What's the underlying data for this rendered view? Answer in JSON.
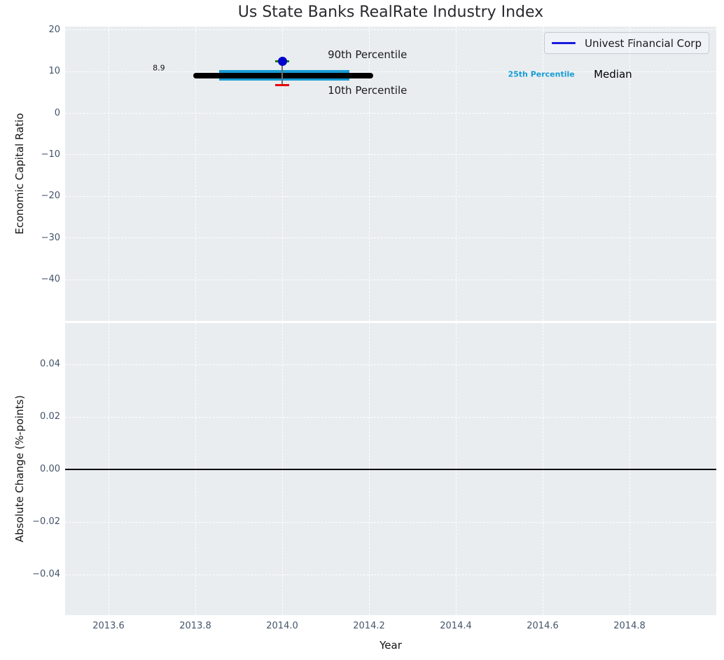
{
  "figure": {
    "title": "Us State Banks RealRate Industry Index"
  },
  "legend": {
    "label": "Univest Financial Corp"
  },
  "palette": {
    "plot_bg": "#e9edf0",
    "grid": "#ffffff",
    "tick_label": "#44546a",
    "text_dark": "#1a1a1a",
    "median_line": "#000000",
    "iqr_band": "#179cd4",
    "p90_marker": "#008000",
    "p10_marker": "#e80000",
    "company_dot": "#0000cd",
    "legend_line": "#1a1ae0",
    "connector": "#6e6e6e",
    "zero_line": "#000000"
  },
  "chart_data": [
    {
      "type": "percentile-summary",
      "title": "Us State Banks RealRate Industry Index",
      "xlabel": "",
      "ylabel": "Economic Capital Ratio",
      "xlim": [
        2013.5,
        2015.0
      ],
      "ylim": [
        -50,
        20.7
      ],
      "grid": "white-dashed",
      "legend_position": "upper right",
      "yticks": {
        "values": [
          20,
          10,
          0,
          -10,
          -20,
          -30,
          -40
        ],
        "labels": [
          "20",
          "10",
          "0",
          "−10",
          "−20",
          "−30",
          "−40"
        ]
      },
      "series": {
        "name": "Univest Financial Corp",
        "x": 2014.0,
        "value": 12.4
      },
      "industry": {
        "median": 8.9,
        "median_label": "8.9",
        "median_span": [
          2013.795,
          2014.21
        ],
        "p25": 7.7,
        "p75": 10.35,
        "iqr_span": [
          2013.855,
          2014.155
        ],
        "p90": 12.4,
        "p10": 6.7,
        "marker_halfwidth": 0.016
      },
      "annotations": [
        {
          "text": "90th Percentile",
          "x": 2014.105,
          "y": 13.9,
          "align": "left",
          "style": "plain"
        },
        {
          "text": "10th Percentile",
          "x": 2014.105,
          "y": 5.45,
          "align": "left",
          "style": "plain"
        },
        {
          "text": "8.9",
          "x": 2013.716,
          "y": 10.75,
          "align": "center",
          "style": "small"
        },
        {
          "text": "25th Percentile",
          "x": 2014.597,
          "y": 9.3,
          "align": "center",
          "style": "cyan-bold"
        },
        {
          "text": "Median",
          "x": 2014.762,
          "y": 9.3,
          "align": "center",
          "style": "median-label"
        }
      ]
    },
    {
      "type": "line",
      "title": "",
      "xlabel": "Year",
      "ylabel": "Absolute Change (%-points)",
      "xlim": [
        2013.5,
        2015.0
      ],
      "ylim": [
        -0.0555,
        0.0557
      ],
      "grid": "white-dashed",
      "zero_line": 0.0,
      "series": [],
      "yticks": {
        "values": [
          0.04,
          0.02,
          0.0,
          -0.02,
          -0.04
        ],
        "labels": [
          "0.04",
          "0.02",
          "0.00",
          "−0.02",
          "−0.04"
        ]
      },
      "xticks": {
        "values": [
          2013.6,
          2013.8,
          2014.0,
          2014.2,
          2014.4,
          2014.6,
          2014.8
        ],
        "labels": [
          "2013.6",
          "2013.8",
          "2014.0",
          "2014.2",
          "2014.4",
          "2014.6",
          "2014.8"
        ]
      }
    }
  ]
}
